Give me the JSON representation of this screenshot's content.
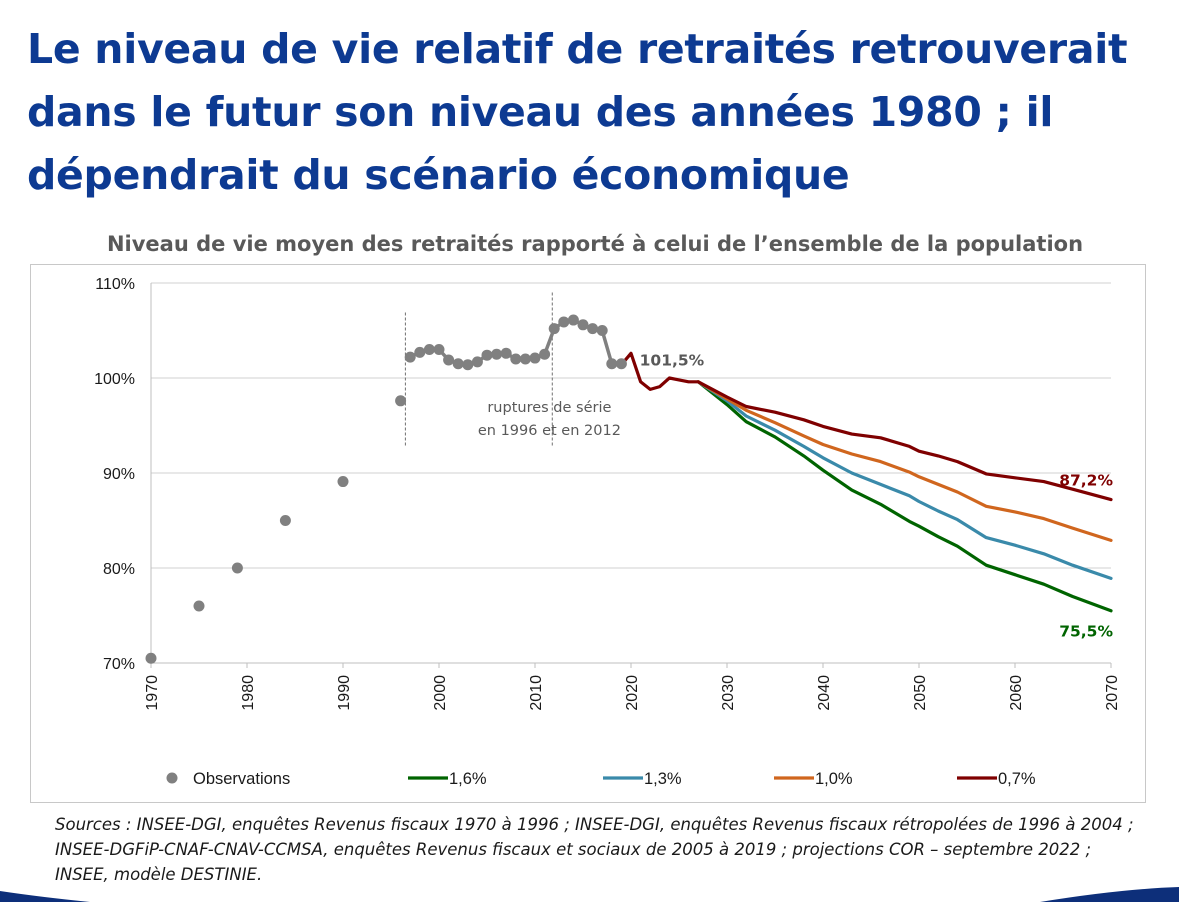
{
  "slide": {
    "title": "Le niveau de vie relatif de retraités retrouverait dans le futur son niveau des années 1980 ; il dépendrait du scénario économique",
    "sources": "Sources : INSEE-DGI, enquêtes Revenus fiscaux 1970 à 1996 ; INSEE-DGI, enquêtes Revenus fiscaux rétropolées de 1996 à 2004 ; INSEE-DGFiP-CNAF-CNAV-CCMSA, enquêtes Revenus fiscaux et sociaux de 2005 à 2019 ; projections COR – septembre 2022 ; INSEE, modèle DESTINIE."
  },
  "chart_data": {
    "type": "line",
    "title": "Niveau de vie moyen des retraités rapporté à celui de l’ensemble de la population",
    "xlabel": "",
    "ylabel": "",
    "xlim": [
      1970,
      2070
    ],
    "ylim": [
      70,
      110
    ],
    "x_ticks": [
      "1970",
      "1980",
      "1990",
      "2000",
      "2010",
      "2020",
      "2030",
      "2040",
      "2050",
      "2060",
      "2070"
    ],
    "y_ticks": [
      "70%",
      "80%",
      "90%",
      "100%",
      "110%"
    ],
    "y_tick_values": [
      70,
      80,
      90,
      100,
      110
    ],
    "legend_position": "bottom",
    "observations": {
      "name": "Observations",
      "color": "#808080",
      "isolated": [
        {
          "x": 1970,
          "y": 70.5
        },
        {
          "x": 1975,
          "y": 76.0
        },
        {
          "x": 1979,
          "y": 80.0
        },
        {
          "x": 1984,
          "y": 85.0
        },
        {
          "x": 1990,
          "y": 89.1
        },
        {
          "x": 1996,
          "y": 97.6
        }
      ],
      "series": [
        {
          "x": 1997,
          "y": 102.2
        },
        {
          "x": 1998,
          "y": 102.7
        },
        {
          "x": 1999,
          "y": 103.0
        },
        {
          "x": 2000,
          "y": 103.0
        },
        {
          "x": 2001,
          "y": 101.9
        },
        {
          "x": 2002,
          "y": 101.5
        },
        {
          "x": 2003,
          "y": 101.4
        },
        {
          "x": 2004,
          "y": 101.7
        },
        {
          "x": 2005,
          "y": 102.4
        },
        {
          "x": 2006,
          "y": 102.5
        },
        {
          "x": 2007,
          "y": 102.6
        },
        {
          "x": 2008,
          "y": 102.0
        },
        {
          "x": 2009,
          "y": 102.0
        },
        {
          "x": 2010,
          "y": 102.1
        },
        {
          "x": 2011,
          "y": 102.5
        },
        {
          "x": 2012,
          "y": 105.2
        },
        {
          "x": 2013,
          "y": 105.9
        },
        {
          "x": 2014,
          "y": 106.1
        },
        {
          "x": 2015,
          "y": 105.6
        },
        {
          "x": 2016,
          "y": 105.2
        },
        {
          "x": 2017,
          "y": 105.0
        },
        {
          "x": 2018,
          "y": 101.5
        },
        {
          "x": 2019,
          "y": 101.5
        }
      ]
    },
    "series": [
      {
        "name": "1,6%",
        "color": "#006400",
        "x": [
          2027,
          2030,
          2032,
          2035,
          2038,
          2040,
          2043,
          2046,
          2049,
          2050,
          2052,
          2054,
          2057,
          2060,
          2063,
          2066,
          2070
        ],
        "y": [
          99.6,
          97.2,
          95.4,
          93.8,
          91.8,
          90.3,
          88.2,
          86.7,
          84.9,
          84.4,
          83.3,
          82.3,
          80.3,
          79.3,
          78.3,
          77.0,
          75.5
        ]
      },
      {
        "name": "1,3%",
        "color": "#3a8aaa",
        "x": [
          2027,
          2030,
          2032,
          2035,
          2038,
          2040,
          2043,
          2046,
          2049,
          2050,
          2052,
          2054,
          2057,
          2060,
          2063,
          2066,
          2070
        ],
        "y": [
          99.6,
          97.6,
          96.0,
          94.5,
          92.8,
          91.6,
          90.0,
          88.8,
          87.6,
          87.0,
          86.0,
          85.1,
          83.2,
          82.4,
          81.5,
          80.3,
          78.9
        ]
      },
      {
        "name": "1,0%",
        "color": "#d0661e",
        "x": [
          2027,
          2030,
          2032,
          2035,
          2038,
          2040,
          2043,
          2046,
          2049,
          2050,
          2052,
          2054,
          2057,
          2060,
          2063,
          2066,
          2070
        ],
        "y": [
          99.6,
          97.8,
          96.6,
          95.3,
          93.9,
          93.0,
          92.0,
          91.2,
          90.1,
          89.6,
          88.8,
          88.0,
          86.5,
          85.9,
          85.2,
          84.2,
          82.9
        ]
      },
      {
        "name": "0,7%",
        "color": "#7f0000",
        "x": [
          2019,
          2020,
          2021,
          2022,
          2023,
          2024,
          2025,
          2026,
          2027,
          2030,
          2032,
          2035,
          2038,
          2040,
          2043,
          2046,
          2049,
          2050,
          2052,
          2054,
          2057,
          2060,
          2063,
          2066,
          2070
        ],
        "y": [
          101.4,
          102.6,
          99.6,
          98.8,
          99.1,
          100.0,
          99.8,
          99.6,
          99.6,
          98.0,
          97.0,
          96.4,
          95.6,
          94.9,
          94.1,
          93.7,
          92.8,
          92.3,
          91.8,
          91.2,
          89.9,
          89.5,
          89.1,
          88.3,
          87.2
        ]
      }
    ],
    "annotations": {
      "peak_label": {
        "text": "101,5%",
        "x": 2019,
        "y": 101.5,
        "color": "#595959"
      },
      "end_high_label": {
        "text": "87,2%",
        "x": 2070,
        "y": 87.2,
        "color": "#7f0000"
      },
      "end_low_label": {
        "text": "75,5%",
        "x": 2070,
        "y": 75.5,
        "color": "#006400"
      },
      "rupture_note": {
        "line1": "ruptures de série",
        "line2": "en 1996 et en 2012",
        "color": "#595959"
      },
      "rupture_years": [
        1996.5,
        2011.8
      ]
    }
  }
}
